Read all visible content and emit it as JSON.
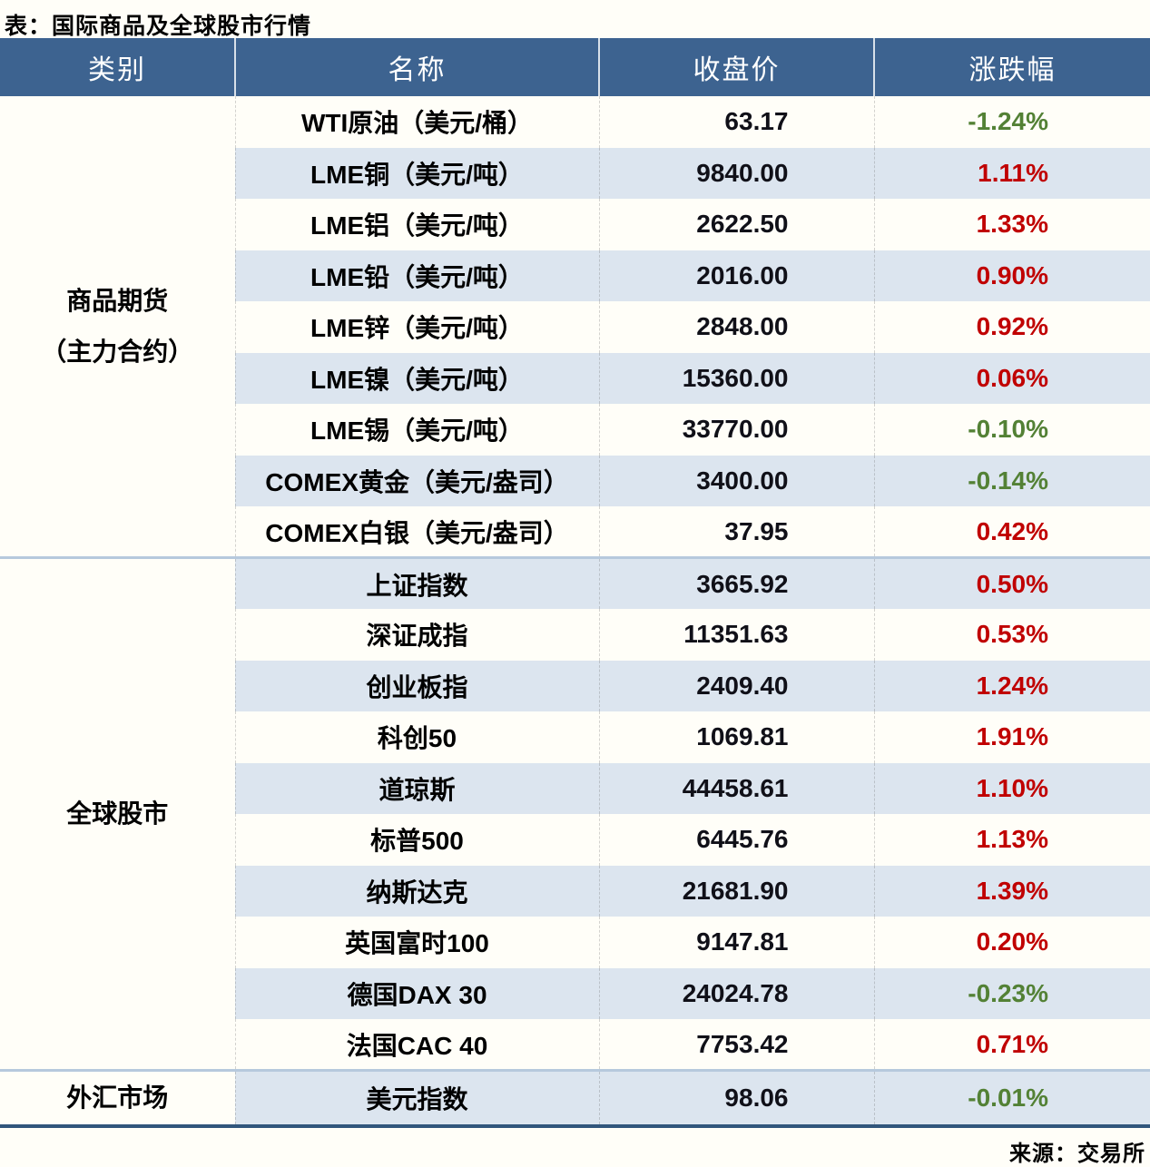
{
  "title": "表：国际商品及全球股市行情",
  "source": "来源：交易所",
  "colors": {
    "header_bg": "#3d6390",
    "row_alt": "#dce5ef",
    "page_bg": "#fffef8",
    "up_red": "#c00000",
    "down_green": "#538135",
    "group_sep": "#b6c9dd",
    "bottom_border": "#31567c"
  },
  "table": {
    "headers": [
      "类别",
      "名称",
      "收盘价",
      "涨跌幅"
    ],
    "groups": [
      {
        "category": "商品期货（主力合约）",
        "category_lines": [
          "商品期货",
          "（主力合约）"
        ],
        "rows": [
          {
            "name": "WTI原油（美元/桶）",
            "close": "63.17",
            "change": "-1.24%",
            "trend": "down"
          },
          {
            "name": "LME铜（美元/吨）",
            "close": "9840.00",
            "change": "1.11%",
            "trend": "up"
          },
          {
            "name": "LME铝（美元/吨）",
            "close": "2622.50",
            "change": "1.33%",
            "trend": "up"
          },
          {
            "name": "LME铅（美元/吨）",
            "close": "2016.00",
            "change": "0.90%",
            "trend": "up"
          },
          {
            "name": "LME锌（美元/吨）",
            "close": "2848.00",
            "change": "0.92%",
            "trend": "up"
          },
          {
            "name": "LME镍（美元/吨）",
            "close": "15360.00",
            "change": "0.06%",
            "trend": "up"
          },
          {
            "name": "LME锡（美元/吨）",
            "close": "33770.00",
            "change": "-0.10%",
            "trend": "down"
          },
          {
            "name": "COMEX黄金（美元/盎司）",
            "close": "3400.00",
            "change": "-0.14%",
            "trend": "down"
          },
          {
            "name": "COMEX白银（美元/盎司）",
            "close": "37.95",
            "change": "0.42%",
            "trend": "up"
          }
        ]
      },
      {
        "category": "全球股市",
        "category_lines": [
          "全球股市"
        ],
        "rows": [
          {
            "name": "上证指数",
            "close": "3665.92",
            "change": "0.50%",
            "trend": "up"
          },
          {
            "name": "深证成指",
            "close": "11351.63",
            "change": "0.53%",
            "trend": "up"
          },
          {
            "name": "创业板指",
            "close": "2409.40",
            "change": "1.24%",
            "trend": "up"
          },
          {
            "name": "科创50",
            "close": "1069.81",
            "change": "1.91%",
            "trend": "up"
          },
          {
            "name": "道琼斯",
            "close": "44458.61",
            "change": "1.10%",
            "trend": "up"
          },
          {
            "name": "标普500",
            "close": "6445.76",
            "change": "1.13%",
            "trend": "up"
          },
          {
            "name": "纳斯达克",
            "close": "21681.90",
            "change": "1.39%",
            "trend": "up"
          },
          {
            "name": "英国富时100",
            "close": "9147.81",
            "change": "0.20%",
            "trend": "up"
          },
          {
            "name": "德国DAX 30",
            "close": "24024.78",
            "change": "-0.23%",
            "trend": "down"
          },
          {
            "name": "法国CAC 40",
            "close": "7753.42",
            "change": "0.71%",
            "trend": "up"
          }
        ]
      },
      {
        "category": "外汇市场",
        "category_lines": [
          "外汇市场"
        ],
        "rows": [
          {
            "name": "美元指数",
            "close": "98.06",
            "change": "-0.01%",
            "trend": "down"
          }
        ]
      }
    ]
  },
  "chart_data": {
    "type": "table",
    "title": "表：国际商品及全球股市行情",
    "columns": [
      "类别",
      "名称",
      "收盘价",
      "涨跌幅"
    ],
    "rows": [
      [
        "商品期货（主力合约）",
        "WTI原油（美元/桶）",
        63.17,
        "-1.24%"
      ],
      [
        "商品期货（主力合约）",
        "LME铜（美元/吨）",
        9840.0,
        "1.11%"
      ],
      [
        "商品期货（主力合约）",
        "LME铝（美元/吨）",
        2622.5,
        "1.33%"
      ],
      [
        "商品期货（主力合约）",
        "LME铅（美元/吨）",
        2016.0,
        "0.90%"
      ],
      [
        "商品期货（主力合约）",
        "LME锌（美元/吨）",
        2848.0,
        "0.92%"
      ],
      [
        "商品期货（主力合约）",
        "LME镍（美元/吨）",
        15360.0,
        "0.06%"
      ],
      [
        "商品期货（主力合约）",
        "LME锡（美元/吨）",
        33770.0,
        "-0.10%"
      ],
      [
        "商品期货（主力合约）",
        "COMEX黄金（美元/盎司）",
        3400.0,
        "-0.14%"
      ],
      [
        "商品期货（主力合约）",
        "COMEX白银（美元/盎司）",
        37.95,
        "0.42%"
      ],
      [
        "全球股市",
        "上证指数",
        3665.92,
        "0.50%"
      ],
      [
        "全球股市",
        "深证成指",
        11351.63,
        "0.53%"
      ],
      [
        "全球股市",
        "创业板指",
        2409.4,
        "1.24%"
      ],
      [
        "全球股市",
        "科创50",
        1069.81,
        "1.91%"
      ],
      [
        "全球股市",
        "道琼斯",
        44458.61,
        "1.10%"
      ],
      [
        "全球股市",
        "标普500",
        6445.76,
        "1.13%"
      ],
      [
        "全球股市",
        "纳斯达克",
        21681.9,
        "1.39%"
      ],
      [
        "全球股市",
        "英国富时100",
        9147.81,
        "0.20%"
      ],
      [
        "全球股市",
        "德国DAX 30",
        24024.78,
        "-0.23%"
      ],
      [
        "全球股市",
        "法国CAC 40",
        7753.42,
        "0.71%"
      ],
      [
        "外汇市场",
        "美元指数",
        98.06,
        "-0.01%"
      ]
    ],
    "source": "来源：交易所",
    "color_convention": {
      "up": "#c00000",
      "down": "#538135"
    }
  }
}
